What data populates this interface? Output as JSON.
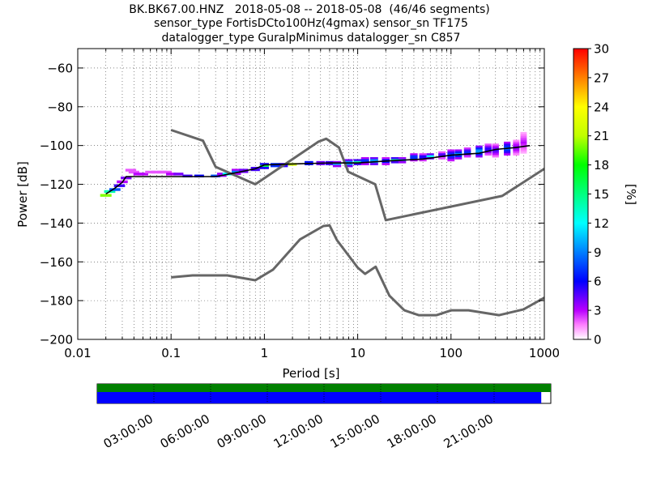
{
  "title_lines": [
    "BK.BK67.00.HNZ   2018-05-08 -- 2018-05-08  (46/46 segments)",
    "sensor_type FortisDCto100Hz(4gmax) sensor_sn TF175",
    "datalogger_type GuralpMinimus datalogger_sn C857"
  ],
  "colorbar": {
    "label": "[%]",
    "ticks": [
      "0",
      "3",
      "6",
      "9",
      "12",
      "15",
      "18",
      "21",
      "24",
      "27",
      "30"
    ],
    "range": [
      0,
      30
    ],
    "colormap": "pqlx"
  },
  "chart_data": {
    "type": "heatmap",
    "title": "BK.BK67.00.HNZ   2018-05-08 -- 2018-05-08  (46/46 segments)",
    "xlabel": "Period [s]",
    "ylabel": "Power [dB]",
    "xscale": "log",
    "xlim": [
      0.01,
      1000
    ],
    "ylim": [
      -200,
      -50
    ],
    "xticks": [
      "0.01",
      "0.1",
      "1",
      "10",
      "100",
      "1000"
    ],
    "yticks": [
      "−60",
      "−80",
      "−100",
      "−120",
      "−140",
      "−160",
      "−180",
      "−200"
    ],
    "grid": true,
    "noise_model_high": [
      [
        0.1,
        -92
      ],
      [
        0.22,
        -97.5
      ],
      [
        0.3,
        -111
      ],
      [
        0.8,
        -120
      ],
      [
        3.8,
        -98
      ],
      [
        4.6,
        -96.5
      ],
      [
        6.3,
        -101
      ],
      [
        7.9,
        -113.5
      ],
      [
        15.4,
        -120
      ],
      [
        20,
        -138.5
      ],
      [
        354,
        -126
      ],
      [
        1000,
        -112
      ]
    ],
    "noise_model_low": [
      [
        0.1,
        -168
      ],
      [
        0.17,
        -167
      ],
      [
        0.4,
        -167
      ],
      [
        0.8,
        -169.5
      ],
      [
        1.24,
        -164
      ],
      [
        2.4,
        -148.5
      ],
      [
        4.3,
        -141.5
      ],
      [
        5,
        -141.2
      ],
      [
        6,
        -148.8
      ],
      [
        10,
        -163
      ],
      [
        12,
        -166.2
      ],
      [
        15.6,
        -162.5
      ],
      [
        21.9,
        -177.5
      ],
      [
        31.6,
        -185
      ],
      [
        45,
        -187.5
      ],
      [
        70,
        -187.5
      ],
      [
        101,
        -185
      ],
      [
        154,
        -185
      ],
      [
        328,
        -187.5
      ],
      [
        600,
        -184.5
      ],
      [
        1000,
        -178.5
      ]
    ],
    "mode_curve": [
      [
        0.02,
        -125
      ],
      [
        0.025,
        -122
      ],
      [
        0.03,
        -119
      ],
      [
        0.033,
        -116
      ],
      [
        0.1,
        -116
      ],
      [
        0.3,
        -116
      ],
      [
        0.5,
        -114
      ],
      [
        0.8,
        -112
      ],
      [
        1,
        -110
      ],
      [
        2,
        -109.5
      ],
      [
        5,
        -109
      ],
      [
        10,
        -109
      ],
      [
        20,
        -108
      ],
      [
        50,
        -107
      ],
      [
        100,
        -105
      ],
      [
        200,
        -104
      ],
      [
        300,
        -102
      ],
      [
        500,
        -101
      ],
      [
        700,
        -100
      ]
    ],
    "psd_clusters": [
      {
        "period": 0.02,
        "db": [
          -126,
          -125
        ],
        "pct": 20
      },
      {
        "period": 0.022,
        "db": [
          -124,
          -123
        ],
        "pct": 14
      },
      {
        "period": 0.025,
        "db": [
          -123,
          -122
        ],
        "pct": 8
      },
      {
        "period": 0.028,
        "db": [
          -121,
          -120
        ],
        "pct": 5
      },
      {
        "period": 0.03,
        "db": [
          -119,
          -118
        ],
        "pct": 3
      },
      {
        "period": 0.033,
        "db": [
          -117,
          -116
        ],
        "pct": 4
      },
      {
        "period": 0.037,
        "db": [
          -113,
          -112
        ],
        "pct": 2
      },
      {
        "period": 0.04,
        "db": [
          -114,
          -113
        ],
        "pct": 2
      },
      {
        "period": 0.045,
        "db": [
          -115,
          -114
        ],
        "pct": 3
      },
      {
        "period": 0.05,
        "db": [
          -115,
          -114
        ],
        "pct": 3
      },
      {
        "period": 0.06,
        "db": [
          -114,
          -113
        ],
        "pct": 2
      },
      {
        "period": 0.07,
        "db": [
          -114,
          -113
        ],
        "pct": 2
      },
      {
        "period": 0.08,
        "db": [
          -114,
          -113
        ],
        "pct": 2
      },
      {
        "period": 0.09,
        "db": [
          -114,
          -113
        ],
        "pct": 2
      },
      {
        "period": 0.1,
        "db": [
          -115,
          -114
        ],
        "pct": 3
      },
      {
        "period": 0.12,
        "db": [
          -115,
          -114
        ],
        "pct": 4
      },
      {
        "period": 0.15,
        "db": [
          -116,
          -115
        ],
        "pct": 5
      },
      {
        "period": 0.2,
        "db": [
          -116,
          -115
        ],
        "pct": 6
      },
      {
        "period": 0.3,
        "db": [
          -116,
          -115
        ],
        "pct": 8
      },
      {
        "period": 0.35,
        "db": [
          -116,
          -114
        ],
        "pct": 10
      },
      {
        "period": 0.4,
        "db": [
          -115,
          -114
        ],
        "pct": 12
      },
      {
        "period": 0.5,
        "db": [
          -115,
          -112
        ],
        "pct": 9
      },
      {
        "period": 0.6,
        "db": [
          -114,
          -112
        ],
        "pct": 12
      },
      {
        "period": 0.8,
        "db": [
          -113,
          -111
        ],
        "pct": 14
      },
      {
        "period": 1.0,
        "db": [
          -112,
          -109
        ],
        "pct": 16
      },
      {
        "period": 1.3,
        "db": [
          -111,
          -109
        ],
        "pct": 20
      },
      {
        "period": 1.6,
        "db": [
          -111,
          -109
        ],
        "pct": 15
      },
      {
        "period": 2.0,
        "db": [
          -110,
          -109
        ],
        "pct": 22
      },
      {
        "period": 3.0,
        "db": [
          -110,
          -108
        ],
        "pct": 18
      },
      {
        "period": 4.0,
        "db": [
          -110,
          -108
        ],
        "pct": 12
      },
      {
        "period": 5.0,
        "db": [
          -110,
          -108
        ],
        "pct": 14
      },
      {
        "period": 6.0,
        "db": [
          -111,
          -108
        ],
        "pct": 10
      },
      {
        "period": 8.0,
        "db": [
          -111,
          -107
        ],
        "pct": 12
      },
      {
        "period": 10,
        "db": [
          -110,
          -107
        ],
        "pct": 14
      },
      {
        "period": 12,
        "db": [
          -110,
          -106
        ],
        "pct": 9
      },
      {
        "period": 15,
        "db": [
          -110,
          -106
        ],
        "pct": 12
      },
      {
        "period": 20,
        "db": [
          -110,
          -106
        ],
        "pct": 8
      },
      {
        "period": 25,
        "db": [
          -109,
          -106
        ],
        "pct": 14
      },
      {
        "period": 30,
        "db": [
          -109,
          -106
        ],
        "pct": 10
      },
      {
        "period": 40,
        "db": [
          -108,
          -104
        ],
        "pct": 9
      },
      {
        "period": 50,
        "db": [
          -108,
          -104
        ],
        "pct": 7
      },
      {
        "period": 60,
        "db": [
          -107,
          -104
        ],
        "pct": 12
      },
      {
        "period": 80,
        "db": [
          -107,
          -103
        ],
        "pct": 6
      },
      {
        "period": 100,
        "db": [
          -108,
          -102
        ],
        "pct": 8
      },
      {
        "period": 120,
        "db": [
          -107,
          -102
        ],
        "pct": 10
      },
      {
        "period": 150,
        "db": [
          -106,
          -101
        ],
        "pct": 7
      },
      {
        "period": 200,
        "db": [
          -106,
          -100
        ],
        "pct": 11
      },
      {
        "period": 250,
        "db": [
          -105,
          -99
        ],
        "pct": 6
      },
      {
        "period": 300,
        "db": [
          -106,
          -99
        ],
        "pct": 5
      },
      {
        "period": 400,
        "db": [
          -105,
          -98
        ],
        "pct": 9
      },
      {
        "period": 500,
        "db": [
          -105,
          -97
        ],
        "pct": 4
      },
      {
        "period": 600,
        "db": [
          -104,
          -93
        ],
        "pct": 3
      }
    ],
    "timeline": {
      "ticks": [
        "03:00:00",
        "06:00:00",
        "09:00:00",
        "12:00:00",
        "15:00:00",
        "18:00:00",
        "21:00:00"
      ],
      "top_bar_color": "#008000",
      "bottom_bar_color": "#0000ff",
      "bottom_bar_coverage": 0.979
    }
  }
}
